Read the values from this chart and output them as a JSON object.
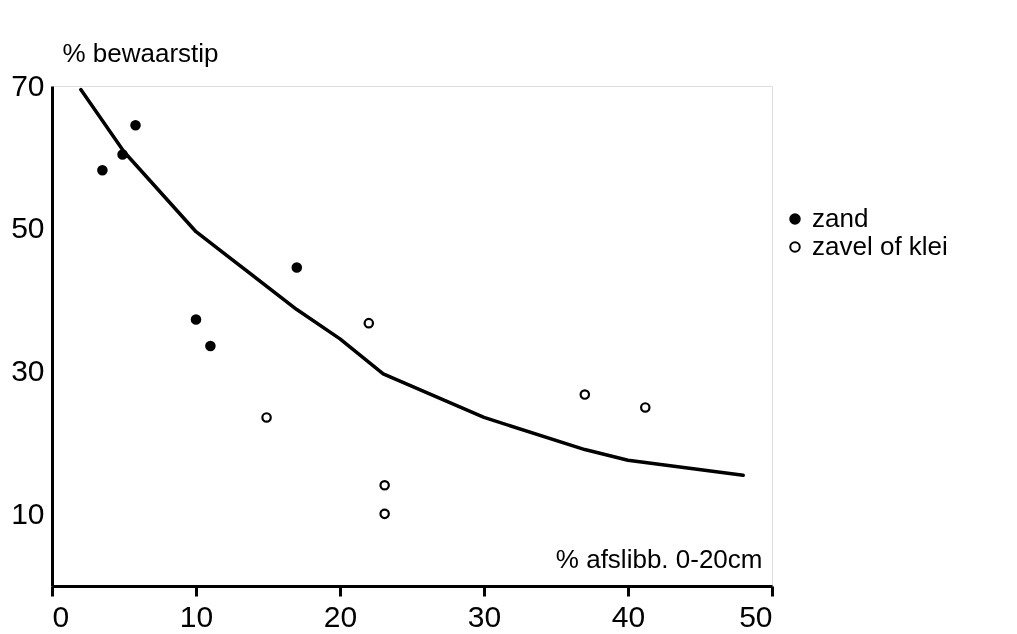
{
  "chart_data": {
    "type": "scatter",
    "xlabel": "% afslibb. 0-20cm",
    "ylabel": "% bewaarstip",
    "xlim": [
      0,
      50
    ],
    "ylim": [
      0,
      70
    ],
    "xticks": [
      0,
      10,
      20,
      30,
      40,
      50
    ],
    "yticks": [
      10,
      30,
      50,
      70
    ],
    "grid": false,
    "legend": "right",
    "marker": "circle",
    "series": [
      {
        "name": "zand",
        "color": "#000000",
        "x": [
          3.5,
          4.9,
          5.8,
          10,
          11,
          17
        ],
        "values": [
          58.2,
          60.4,
          64.5,
          37.3,
          33.6,
          44.6
        ]
      },
      {
        "name": "zavel of klei",
        "color": "#ffffff",
        "x": [
          14.9,
          22,
          23.1,
          23.1,
          37,
          41.2
        ],
        "values": [
          23.6,
          36.8,
          14.1,
          10.1,
          26.8,
          25
        ]
      },
      {
        "type": "line",
        "color": "#000000",
        "marker": "none",
        "line_style": "solid",
        "x": [
          2,
          5,
          10,
          17,
          20,
          23,
          30,
          37,
          40,
          48
        ],
        "values": [
          69.5,
          60.8,
          49.6,
          38.7,
          34.6,
          29.7,
          23.6,
          19.1,
          17.6,
          15.5
        ]
      }
    ]
  }
}
